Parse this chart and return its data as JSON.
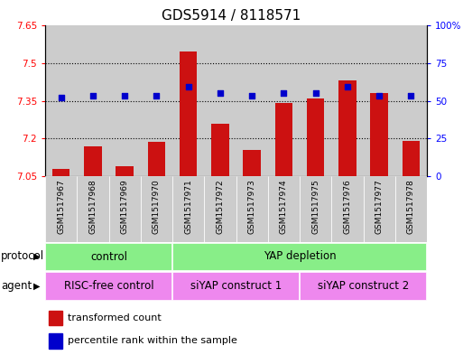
{
  "title": "GDS5914 / 8118571",
  "samples": [
    "GSM1517967",
    "GSM1517968",
    "GSM1517969",
    "GSM1517970",
    "GSM1517971",
    "GSM1517972",
    "GSM1517973",
    "GSM1517974",
    "GSM1517975",
    "GSM1517976",
    "GSM1517977",
    "GSM1517978"
  ],
  "bar_values": [
    7.08,
    7.17,
    7.09,
    7.185,
    7.545,
    7.26,
    7.155,
    7.34,
    7.36,
    7.43,
    7.38,
    7.19
  ],
  "dot_values": [
    52,
    53,
    53,
    53,
    59,
    55,
    53,
    55,
    55,
    59,
    53,
    53
  ],
  "ylim": [
    7.05,
    7.65
  ],
  "y2lim": [
    0,
    100
  ],
  "yticks": [
    7.05,
    7.2,
    7.35,
    7.5,
    7.65
  ],
  "ytick_labels": [
    "7.05",
    "7.2",
    "7.35",
    "7.5",
    "7.65"
  ],
  "y2ticks": [
    0,
    25,
    50,
    75,
    100
  ],
  "y2tick_labels": [
    "0",
    "25",
    "50",
    "75",
    "100%"
  ],
  "hlines": [
    7.2,
    7.35,
    7.5
  ],
  "bar_color": "#cc1111",
  "dot_color": "#0000cc",
  "bar_bottom": 7.05,
  "protocol_color": "#88ee88",
  "agent_color": "#ee88ee",
  "col_bg": "#cccccc",
  "legend_items": [
    "transformed count",
    "percentile rank within the sample"
  ],
  "bg_color": "#ffffff",
  "title_fontsize": 11,
  "tick_fontsize": 7.5,
  "sample_fontsize": 6.5,
  "row_fontsize": 8.5
}
